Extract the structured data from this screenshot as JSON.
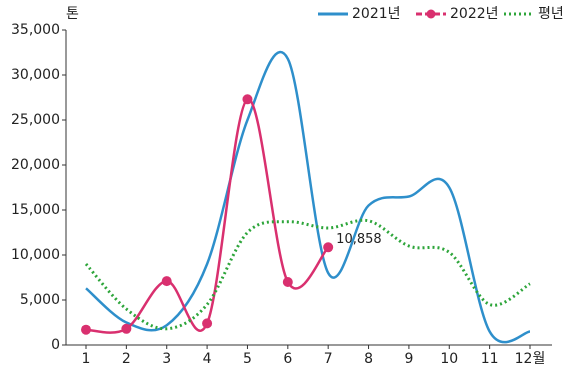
{
  "chart_data": {
    "type": "line",
    "y_unit": "톤",
    "categories": [
      "1",
      "2",
      "3",
      "4",
      "5",
      "6",
      "7",
      "8",
      "9",
      "10",
      "11",
      "12월"
    ],
    "series": [
      {
        "name": "2021년",
        "color": "#2e8fcb",
        "style": "solid",
        "markers": false,
        "values": [
          6300,
          2500,
          2200,
          9000,
          25000,
          31800,
          8000,
          15500,
          16500,
          17500,
          1500,
          1500
        ]
      },
      {
        "name": "2022년",
        "color": "#d9306f",
        "style": "solid",
        "markers": true,
        "values": [
          1700,
          1800,
          7100,
          2400,
          27300,
          7000,
          10858,
          null,
          null,
          null,
          null,
          null
        ],
        "value_labels": [
          null,
          null,
          null,
          null,
          null,
          null,
          "10,858",
          null,
          null,
          null,
          null,
          null
        ]
      },
      {
        "name": "평년",
        "color": "#2da53a",
        "style": "dotted",
        "markers": false,
        "values": [
          9000,
          4000,
          1800,
          4500,
          12500,
          13700,
          13000,
          13800,
          11000,
          10300,
          4500,
          6800
        ]
      }
    ],
    "ylim": [
      0,
      35000
    ],
    "yticks": [
      0,
      {
        "value": 5000,
        "label": "5,000"
      },
      {
        "value": 10000,
        "label": "10,000"
      },
      {
        "value": 15000,
        "label": "15,000"
      },
      {
        "value": 20000,
        "label": "20,000"
      },
      {
        "value": 25000,
        "label": "25,000"
      },
      {
        "value": 30000,
        "label": "30,000"
      },
      {
        "value": 35000,
        "label": "35,000"
      }
    ],
    "grid": false,
    "legend": "top-right"
  }
}
